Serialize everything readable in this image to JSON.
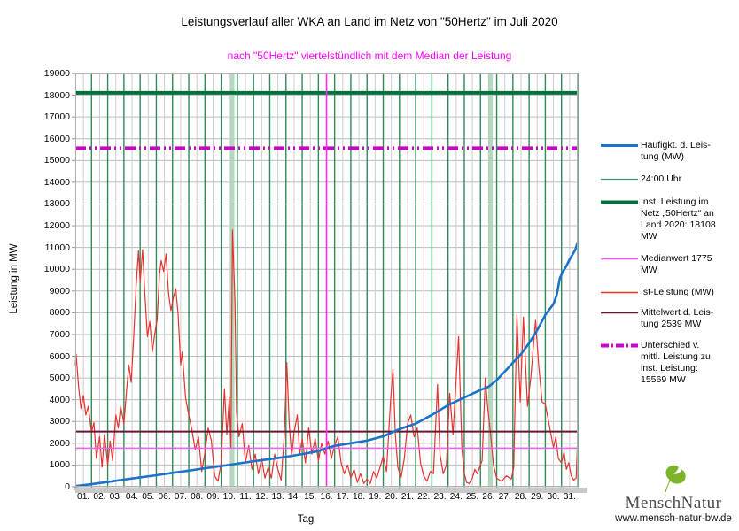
{
  "title": "Leistungsverlauf aller WKA an Land im Netz von \"50Hertz\" im Juli 2020",
  "subtitle": "nach \"50Hertz\" viertelstündlich mit dem Median der Leistung",
  "logo": {
    "brand": "MenschNatur",
    "url": "www.mensch-natur-bw.de",
    "leaf_color": "#7cb42a"
  },
  "legend": {
    "items": [
      {
        "label": "Häufigkt. d. Leis-\ntung (MW)",
        "color": "#1c72c9",
        "width": 3,
        "dash": ""
      },
      {
        "label": "24:00 Uhr",
        "color": "#3a9970",
        "width": 1.2,
        "dash": ""
      },
      {
        "label": "Inst. Leistung im\nNetz „50Hertz“ an\nLand 2020: 18108\nMW",
        "color": "#00703c",
        "width": 4,
        "dash": ""
      },
      {
        "label": "Medianwert 1775\nMW",
        "color": "#ff55ff",
        "width": 1.4,
        "dash": ""
      },
      {
        "label": "Ist-Leistung (MW)",
        "color": "#e8322e",
        "width": 1.4,
        "dash": ""
      },
      {
        "label": "Mittelwert d. Leis-\ntung 2539 MW",
        "color": "#6b1430",
        "width": 1.6,
        "dash": ""
      },
      {
        "label": "Unterschied v.\nmittl. Leistung zu\ninst. Leistung:\n15569 MW",
        "color": "#cc00cc",
        "width": 4,
        "dash": "9 3 2 3"
      }
    ]
  },
  "chart_data": {
    "type": "line",
    "title": "Leistungsverlauf aller WKA an Land im Netz von \"50Hertz\" im Juli 2020",
    "subtitle": "nach \"50Hertz\" viertelstündlich mit dem Median der Leistung",
    "x_axis": {
      "label": "Tag",
      "min": 1,
      "max": 32,
      "day_labels": [
        "01.",
        "02.",
        "03.",
        "04.",
        "05.",
        "06.",
        "07.",
        "08.",
        "09.",
        "10.",
        "11.",
        "12.",
        "13.",
        "14.",
        "15.",
        "16.",
        "17.",
        "18.",
        "19.",
        "20.",
        "21.",
        "22.",
        "23.",
        "24.",
        "25.",
        "26.",
        "27.",
        "28.",
        "29.",
        "30.",
        "31."
      ]
    },
    "y_axis": {
      "label": "Leistung in MW",
      "min": 0,
      "max": 19000,
      "tick_step": 1000
    },
    "grid": {
      "h_major_color": "#bcbcbc",
      "v_minor_color": "#cccccc",
      "border_color": "#b0b0b0",
      "day_line_color": "#2e8b57",
      "highlight_color": "#a6d4b4"
    },
    "reference_lines_horizontal": [
      {
        "name": "Inst. Leistung im Netz „50Hertz“ an Land 2020",
        "value": 18108,
        "color": "#00703c",
        "width": 4,
        "dash": ""
      },
      {
        "name": "Unterschied v. mittl. Leistung zu inst. Leistung",
        "value": 15569,
        "color": "#cc00cc",
        "width": 4,
        "dash": "12 4 2 4 2 4"
      },
      {
        "name": "Mittelwert d. Leistung",
        "value": 2539,
        "color": "#6b1430",
        "width": 2,
        "dash": ""
      },
      {
        "name": "Medianwert",
        "value": 1775,
        "color": "#ff55ff",
        "width": 1.4,
        "dash": ""
      }
    ],
    "vertical_lines": {
      "day_boundaries": "24:00 Uhr lines at every day boundary",
      "median_marker": {
        "day": 16.5,
        "color": "#ff2bf0",
        "width": 1.6
      },
      "highlights": [
        {
          "day": 10.68
        },
        {
          "day": 26.62
        }
      ]
    },
    "series": [
      {
        "name": "Ist-Leistung (MW)",
        "color": "#e8322e",
        "width": 1.2,
        "points": [
          [
            1.0,
            5600
          ],
          [
            1.05,
            6100
          ],
          [
            1.2,
            4600
          ],
          [
            1.35,
            3600
          ],
          [
            1.5,
            4200
          ],
          [
            1.65,
            3300
          ],
          [
            1.8,
            3700
          ],
          [
            2.0,
            2500
          ],
          [
            2.15,
            2950
          ],
          [
            2.3,
            1300
          ],
          [
            2.5,
            2300
          ],
          [
            2.65,
            900
          ],
          [
            2.8,
            2400
          ],
          [
            3.0,
            1000
          ],
          [
            3.15,
            2100
          ],
          [
            3.3,
            1200
          ],
          [
            3.5,
            3300
          ],
          [
            3.65,
            2700
          ],
          [
            3.8,
            3700
          ],
          [
            4.0,
            2900
          ],
          [
            4.15,
            4300
          ],
          [
            4.3,
            5600
          ],
          [
            4.45,
            4800
          ],
          [
            4.6,
            6800
          ],
          [
            4.75,
            9200
          ],
          [
            4.9,
            10850
          ],
          [
            5.0,
            9400
          ],
          [
            5.15,
            10900
          ],
          [
            5.3,
            8800
          ],
          [
            5.45,
            6900
          ],
          [
            5.6,
            7600
          ],
          [
            5.75,
            6200
          ],
          [
            5.9,
            7000
          ],
          [
            6.05,
            7700
          ],
          [
            6.2,
            9800
          ],
          [
            6.3,
            10400
          ],
          [
            6.45,
            9900
          ],
          [
            6.6,
            10700
          ],
          [
            6.75,
            8900
          ],
          [
            6.9,
            8100
          ],
          [
            7.05,
            8700
          ],
          [
            7.2,
            9100
          ],
          [
            7.35,
            7900
          ],
          [
            7.5,
            5600
          ],
          [
            7.6,
            6200
          ],
          [
            7.8,
            4100
          ],
          [
            8.0,
            3300
          ],
          [
            8.2,
            2600
          ],
          [
            8.4,
            1700
          ],
          [
            8.6,
            2300
          ],
          [
            8.8,
            700
          ],
          [
            9.0,
            1600
          ],
          [
            9.2,
            2700
          ],
          [
            9.4,
            2100
          ],
          [
            9.6,
            500
          ],
          [
            9.8,
            250
          ],
          [
            10.0,
            1100
          ],
          [
            10.2,
            4500
          ],
          [
            10.35,
            2400
          ],
          [
            10.5,
            4100
          ],
          [
            10.6,
            1800
          ],
          [
            10.7,
            11800
          ],
          [
            10.85,
            8500
          ],
          [
            10.95,
            3400
          ],
          [
            11.1,
            2300
          ],
          [
            11.3,
            2900
          ],
          [
            11.5,
            1100
          ],
          [
            11.7,
            1900
          ],
          [
            11.9,
            800
          ],
          [
            12.1,
            1500
          ],
          [
            12.3,
            600
          ],
          [
            12.5,
            1300
          ],
          [
            12.7,
            400
          ],
          [
            12.9,
            900
          ],
          [
            13.1,
            400
          ],
          [
            13.3,
            1500
          ],
          [
            13.5,
            800
          ],
          [
            13.7,
            300
          ],
          [
            13.9,
            2400
          ],
          [
            14.05,
            5700
          ],
          [
            14.2,
            2900
          ],
          [
            14.35,
            1400
          ],
          [
            14.5,
            2500
          ],
          [
            14.7,
            3300
          ],
          [
            14.85,
            1500
          ],
          [
            15.0,
            2200
          ],
          [
            15.2,
            1100
          ],
          [
            15.4,
            2700
          ],
          [
            15.6,
            1500
          ],
          [
            15.8,
            2200
          ],
          [
            16.0,
            1200
          ],
          [
            16.2,
            2000
          ],
          [
            16.4,
            1500
          ],
          [
            16.6,
            2100
          ],
          [
            16.8,
            1300
          ],
          [
            17.0,
            1900
          ],
          [
            17.2,
            2300
          ],
          [
            17.4,
            1100
          ],
          [
            17.6,
            600
          ],
          [
            17.8,
            1000
          ],
          [
            18.0,
            400
          ],
          [
            18.2,
            800
          ],
          [
            18.4,
            200
          ],
          [
            18.6,
            600
          ],
          [
            18.8,
            150
          ],
          [
            19.0,
            350
          ],
          [
            19.2,
            150
          ],
          [
            19.4,
            700
          ],
          [
            19.6,
            400
          ],
          [
            19.8,
            900
          ],
          [
            20.0,
            1400
          ],
          [
            20.2,
            700
          ],
          [
            20.45,
            3900
          ],
          [
            20.6,
            5400
          ],
          [
            20.75,
            2400
          ],
          [
            20.9,
            900
          ],
          [
            21.1,
            400
          ],
          [
            21.3,
            1300
          ],
          [
            21.5,
            2900
          ],
          [
            21.7,
            3300
          ],
          [
            21.9,
            2300
          ],
          [
            22.1,
            2700
          ],
          [
            22.3,
            1100
          ],
          [
            22.5,
            500
          ],
          [
            22.7,
            250
          ],
          [
            22.9,
            700
          ],
          [
            23.1,
            600
          ],
          [
            23.35,
            4700
          ],
          [
            23.5,
            1500
          ],
          [
            23.7,
            600
          ],
          [
            23.9,
            1000
          ],
          [
            24.1,
            4300
          ],
          [
            24.3,
            2400
          ],
          [
            24.65,
            6900
          ],
          [
            24.85,
            1800
          ],
          [
            25.0,
            600
          ],
          [
            25.15,
            200
          ],
          [
            25.3,
            150
          ],
          [
            25.5,
            400
          ],
          [
            25.65,
            800
          ],
          [
            25.8,
            600
          ],
          [
            25.95,
            900
          ],
          [
            26.1,
            1200
          ],
          [
            26.3,
            5000
          ],
          [
            26.45,
            3600
          ],
          [
            26.6,
            2600
          ],
          [
            26.8,
            1000
          ],
          [
            27.0,
            400
          ],
          [
            27.3,
            250
          ],
          [
            27.6,
            500
          ],
          [
            27.9,
            350
          ],
          [
            28.05,
            900
          ],
          [
            28.25,
            7900
          ],
          [
            28.45,
            3900
          ],
          [
            28.65,
            7800
          ],
          [
            28.9,
            3700
          ],
          [
            29.1,
            5000
          ],
          [
            29.4,
            7650
          ],
          [
            29.6,
            5500
          ],
          [
            29.8,
            3900
          ],
          [
            30.0,
            3800
          ],
          [
            30.2,
            3000
          ],
          [
            30.35,
            2400
          ],
          [
            30.5,
            1800
          ],
          [
            30.65,
            2300
          ],
          [
            30.8,
            1300
          ],
          [
            31.0,
            1100
          ],
          [
            31.15,
            1600
          ],
          [
            31.3,
            800
          ],
          [
            31.45,
            1100
          ],
          [
            31.6,
            500
          ],
          [
            31.75,
            300
          ],
          [
            31.9,
            400
          ],
          [
            31.98,
            1900
          ]
        ]
      },
      {
        "name": "Häufigkt. d. Leistung (MW)",
        "color": "#1c72c9",
        "width": 2.6,
        "points": [
          [
            1,
            30
          ],
          [
            2,
            120
          ],
          [
            3,
            220
          ],
          [
            4,
            330
          ],
          [
            5,
            430
          ],
          [
            6,
            530
          ],
          [
            7,
            640
          ],
          [
            8,
            740
          ],
          [
            9,
            850
          ],
          [
            10,
            950
          ],
          [
            11,
            1060
          ],
          [
            12,
            1170
          ],
          [
            13,
            1270
          ],
          [
            14,
            1380
          ],
          [
            15,
            1500
          ],
          [
            16,
            1640
          ],
          [
            16.5,
            1775
          ],
          [
            17,
            1880
          ],
          [
            18,
            2000
          ],
          [
            19,
            2120
          ],
          [
            20,
            2320
          ],
          [
            21,
            2650
          ],
          [
            22,
            2900
          ],
          [
            23,
            3300
          ],
          [
            24,
            3750
          ],
          [
            25,
            4100
          ],
          [
            26,
            4450
          ],
          [
            26.5,
            4600
          ],
          [
            27,
            4900
          ],
          [
            27.5,
            5300
          ],
          [
            28,
            5700
          ],
          [
            28.5,
            6100
          ],
          [
            29,
            6600
          ],
          [
            29.5,
            7200
          ],
          [
            30,
            7900
          ],
          [
            30.3,
            8200
          ],
          [
            30.5,
            8400
          ],
          [
            30.7,
            8800
          ],
          [
            30.9,
            9600
          ],
          [
            31.1,
            9900
          ],
          [
            31.3,
            10150
          ],
          [
            31.5,
            10450
          ],
          [
            31.7,
            10700
          ],
          [
            31.85,
            10900
          ],
          [
            31.98,
            11200
          ]
        ]
      }
    ]
  }
}
